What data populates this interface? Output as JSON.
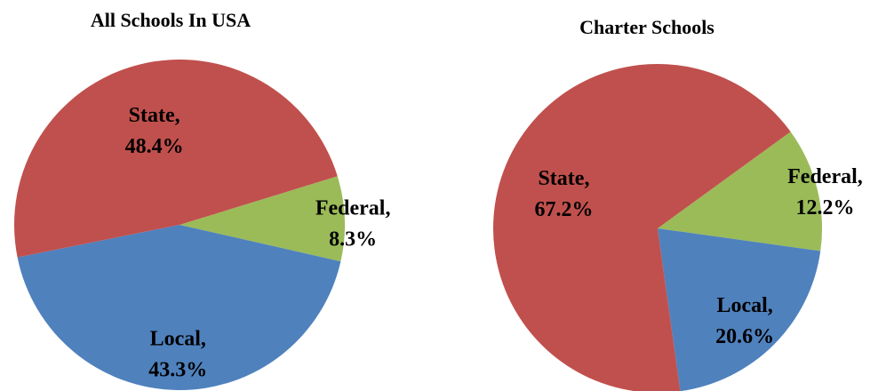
{
  "chart_data": [
    {
      "type": "pie",
      "title": "All Schools In USA",
      "categories": [
        "Federal,",
        "Local,",
        "State,"
      ],
      "values": [
        8.3,
        43.3,
        48.4
      ],
      "value_labels": [
        "8.3%",
        "43.3%",
        "48.4%"
      ],
      "colors": [
        "#9bbb59",
        "#4f81bd",
        "#c0504d"
      ]
    },
    {
      "type": "pie",
      "title": "Charter Schools",
      "categories": [
        "Federal,",
        "Local,",
        "State,"
      ],
      "values": [
        12.2,
        20.6,
        67.2
      ],
      "value_labels": [
        "12.2%",
        "20.6%",
        "67.2%"
      ],
      "colors": [
        "#9bbb59",
        "#4f81bd",
        "#c0504d"
      ]
    }
  ]
}
